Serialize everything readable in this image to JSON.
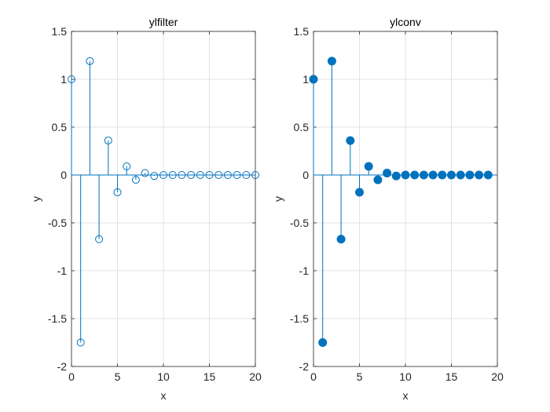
{
  "chart_data": [
    {
      "type": "stem",
      "title": "ylfilter",
      "xlabel": "x",
      "ylabel": "y",
      "xlim": [
        0,
        20
      ],
      "ylim": [
        -2,
        1.5
      ],
      "xticks": [
        "0",
        "5",
        "10",
        "15",
        "20"
      ],
      "yticks": [
        "-2",
        "-1.5",
        "-1",
        "-0.5",
        "0",
        "0.5",
        "1",
        "1.5"
      ],
      "grid": true,
      "marker": "open-circle",
      "color": "#0072BD",
      "x": [
        0,
        1,
        2,
        3,
        4,
        5,
        6,
        7,
        8,
        9,
        10,
        11,
        12,
        13,
        14,
        15,
        16,
        17,
        18,
        19,
        20
      ],
      "values": [
        1.0,
        -1.75,
        1.19,
        -0.67,
        0.36,
        -0.18,
        0.09,
        -0.05,
        0.02,
        -0.01,
        0.0,
        0.0,
        0.0,
        0.0,
        0.0,
        0.0,
        0.0,
        0.0,
        0.0,
        0.0,
        0.0
      ]
    },
    {
      "type": "stem",
      "title": "ylconv",
      "xlabel": "x",
      "ylabel": "y",
      "xlim": [
        0,
        20
      ],
      "ylim": [
        -2,
        1.5
      ],
      "xticks": [
        "0",
        "5",
        "10",
        "15",
        "20"
      ],
      "yticks": [
        "-2",
        "-1.5",
        "-1",
        "-0.5",
        "0",
        "0.5",
        "1",
        "1.5"
      ],
      "grid": true,
      "marker": "filled-circle",
      "color": "#0072BD",
      "x": [
        0,
        1,
        2,
        3,
        4,
        5,
        6,
        7,
        8,
        9,
        10,
        11,
        12,
        13,
        14,
        15,
        16,
        17,
        18,
        19
      ],
      "values": [
        1.0,
        -1.75,
        1.19,
        -0.67,
        0.36,
        -0.18,
        0.09,
        -0.05,
        0.02,
        -0.01,
        0.0,
        0.0,
        0.0,
        0.0,
        0.0,
        0.0,
        0.0,
        0.0,
        0.0,
        0.0
      ]
    }
  ]
}
